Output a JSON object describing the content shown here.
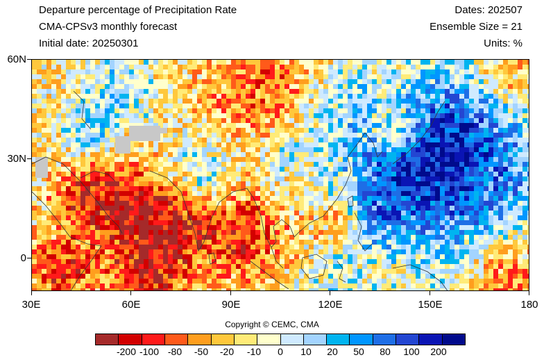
{
  "header": {
    "title": "Departure percentage of Precipitation Rate",
    "model": "CMA-CPSv3 monthly forecast",
    "initial_date": "Initial date: 20250301",
    "dates": "Dates: 202507",
    "ensemble": "Ensemble Size = 21",
    "units": "Units: %"
  },
  "map": {
    "lon_range": [
      30,
      180
    ],
    "lat_range": [
      -10,
      60
    ],
    "x_ticks": [
      "30E",
      "60E",
      "90E",
      "120E",
      "150E",
      "180"
    ],
    "y_ticks": [
      "60N",
      "30N",
      "0"
    ],
    "missing_color": "#c8c8c8",
    "coastline_color": "#333333"
  },
  "copyright": "Copyright © CEMC, CMA",
  "legend": {
    "colors": [
      "#a52a2a",
      "#d20000",
      "#ff1a1a",
      "#ff5a1a",
      "#ff9e1e",
      "#ffc83c",
      "#ffeb78",
      "#ffffcc",
      "#cfeaff",
      "#a3d4ff",
      "#00b4f0",
      "#0096ff",
      "#1e6ee6",
      "#2346d2",
      "#0a14b4",
      "#000a8c"
    ],
    "labels": [
      "-200",
      "-100",
      "-80",
      "-50",
      "-20",
      "-10",
      "0",
      "10",
      "20",
      "50",
      "80",
      "100",
      "200"
    ]
  }
}
